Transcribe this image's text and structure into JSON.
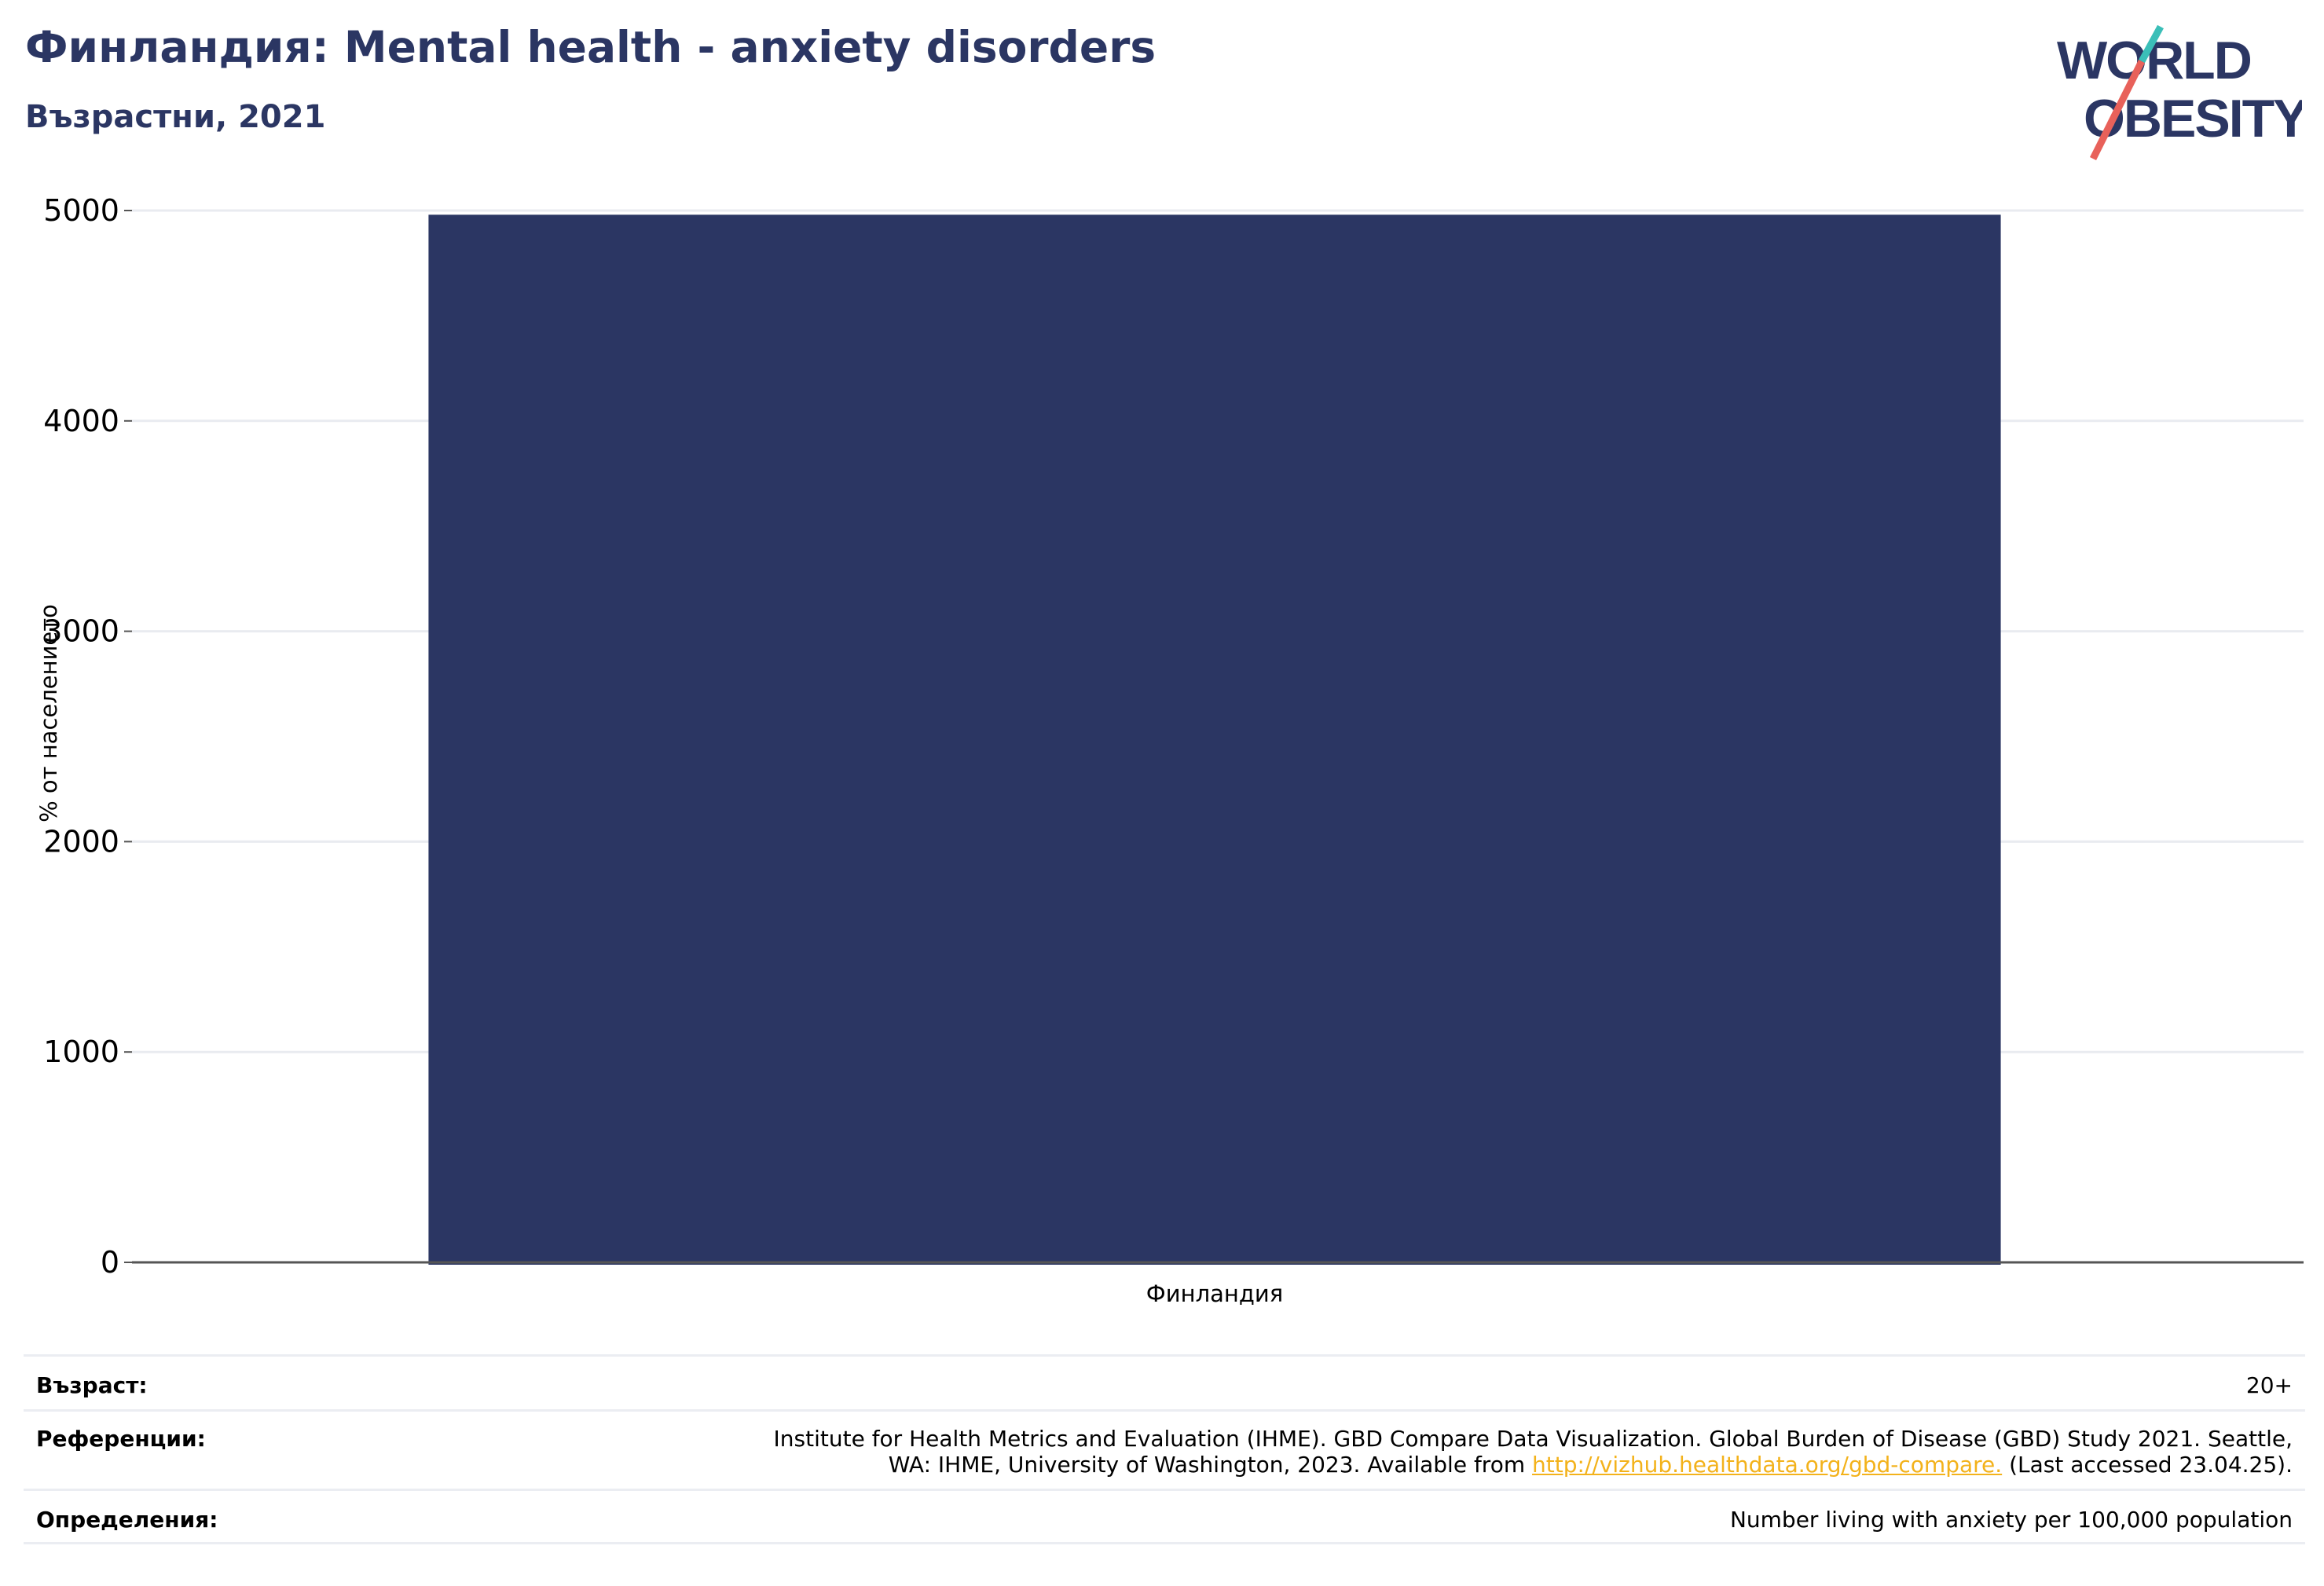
{
  "header": {
    "title": "Финландия: Mental health - anxiety disorders",
    "subtitle": "Възрастни, 2021"
  },
  "logo": {
    "line1": "WORLD",
    "line2": "OBESITY",
    "colors": {
      "text": "#2b3663",
      "slash_red": "#e8615a",
      "slash_teal": "#3bbfb8"
    }
  },
  "chart_data": {
    "type": "bar",
    "categories": [
      "Финландия"
    ],
    "values": [
      4980
    ],
    "ylabel": "% от населението",
    "xlabel": "",
    "ylim": [
      0,
      5000
    ],
    "yticks": [
      "0",
      "1000",
      "2000",
      "3000",
      "4000",
      "5000"
    ],
    "grid": true,
    "bar_color": "#2b3663"
  },
  "meta": {
    "age_label": "Възраст:",
    "age_value": "20+",
    "ref_label": "Референции:",
    "ref_text_1": "Institute for Health Metrics and Evaluation (IHME). GBD Compare Data Visualization. Global Burden of Disease (GBD) Study 2021. Seattle,",
    "ref_text_2": "WA: IHME, University of Washington, 2023. Available from",
    "ref_link": "http://vizhub.healthdata.org/gbd-compare.",
    "ref_text_3": "(Last accessed 23.04.25).",
    "def_label": "Определения:",
    "def_value": "Number living with anxiety per 100,000 population"
  }
}
